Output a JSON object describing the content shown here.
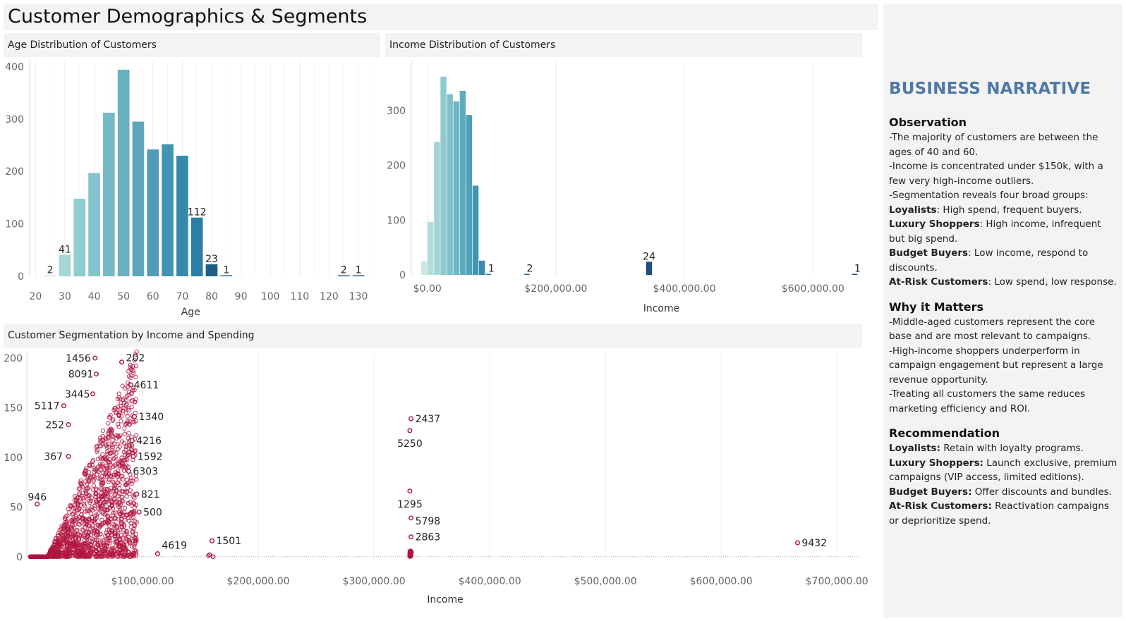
{
  "dashboard": {
    "title": "Customer Demographics & Segments"
  },
  "panels": {
    "age": {
      "title": "Age Distribution of Customers"
    },
    "income": {
      "title": "Income Distribution of  Customers"
    },
    "segment": {
      "title": "Customer Segmentation by Income and Spending"
    }
  },
  "narrative": {
    "title": "BUSINESS NARRATIVE",
    "sections": [
      {
        "heading": "Observation",
        "lines": [
          {
            "text": "-The majority of customers are between the ages of 40 and 60."
          },
          {
            "text": "-Income is concentrated under $150k, with a few very high-income outliers."
          },
          {
            "text": "-Segmentation reveals four broad groups:"
          },
          {
            "bold": "Loyalists",
            "text": ": High spend, frequent buyers."
          },
          {
            "bold": "Luxury Shoppers",
            "text": ": High income, infrequent but big spend."
          },
          {
            "bold": "Budget Buyers",
            "text": ": Low income, respond to discounts."
          },
          {
            "bold": "At-Risk Customers",
            "text": ": Low spend, low response."
          }
        ]
      },
      {
        "heading": "Why it Matters",
        "lines": [
          {
            "text": "-Middle-aged customers represent the core base and are most relevant to campaigns."
          },
          {
            "text": "-High-income shoppers underperform in campaign engagement but represent a large revenue opportunity."
          },
          {
            "text": "-Treating all customers the same reduces marketing efficiency and ROI."
          }
        ]
      },
      {
        "heading": "Recommendation",
        "lines": [
          {
            "bold": "Loyalists:",
            "text": " Retain with loyalty programs."
          },
          {
            "bold": "Luxury Shoppers:",
            "text": " Launch exclusive, premium campaigns (VIP access, limited editions)."
          },
          {
            "bold": "Budget Buyers:",
            "text": " Offer discounts and bundles."
          },
          {
            "bold": "At-Risk Customers:",
            "text": " Reactivation campaigns or deprioritize spend."
          }
        ]
      }
    ]
  },
  "chart_data": [
    {
      "id": "age",
      "type": "bar",
      "xlabel": "Age",
      "xlim": [
        18,
        136
      ],
      "ylim": [
        0,
        410
      ],
      "xticks": [
        20,
        30,
        40,
        50,
        60,
        70,
        80,
        90,
        100,
        110,
        120,
        130
      ],
      "yticks": [
        0,
        100,
        200,
        300,
        400
      ],
      "bins": [
        {
          "x": 25,
          "value": 2,
          "label": "2",
          "color": "#c8e3e3"
        },
        {
          "x": 30,
          "value": 41,
          "label": "41",
          "color": "#a5d5d6"
        },
        {
          "x": 35,
          "value": 148
        },
        {
          "x": 40,
          "value": 197
        },
        {
          "x": 45,
          "value": 312
        },
        {
          "x": 50,
          "value": 394
        },
        {
          "x": 55,
          "value": 295
        },
        {
          "x": 60,
          "value": 242
        },
        {
          "x": 65,
          "value": 252
        },
        {
          "x": 70,
          "value": 230
        },
        {
          "x": 75,
          "value": 112,
          "label": "112"
        },
        {
          "x": 80,
          "value": 23,
          "label": "23",
          "color": "#1f5f87"
        },
        {
          "x": 85,
          "value": 1,
          "label": "1",
          "color": "#1f5f87"
        },
        {
          "x": 125,
          "value": 2,
          "label": "2",
          "color": "#1f5f87"
        },
        {
          "x": 130,
          "value": 1,
          "label": "1",
          "color": "#1f5f87"
        }
      ]
    },
    {
      "id": "income",
      "type": "bar",
      "xlabel": "Income",
      "xlim": [
        -25000,
        670000
      ],
      "ylim": [
        0,
        390
      ],
      "xticks": [
        0,
        200000,
        400000,
        600000
      ],
      "xtick_labels": [
        "$0.00",
        "$200,000.00",
        "$400,000.00",
        "$600,000.00"
      ],
      "yticks": [
        0,
        100,
        200,
        300
      ],
      "bins": [
        {
          "x": -5000,
          "value": 25,
          "color": "#cce6e4"
        },
        {
          "x": 5000,
          "value": 97,
          "color": "#b4dcdb"
        },
        {
          "x": 15000,
          "value": 243,
          "color": "#a3d4d5"
        },
        {
          "x": 25000,
          "value": 362,
          "color": "#8fcad0"
        },
        {
          "x": 35000,
          "value": 330,
          "color": "#7ec0cb"
        },
        {
          "x": 45000,
          "value": 317,
          "color": "#6cb6c5"
        },
        {
          "x": 55000,
          "value": 336,
          "color": "#5dabbf"
        },
        {
          "x": 65000,
          "value": 292,
          "color": "#4f9fb8"
        },
        {
          "x": 75000,
          "value": 163,
          "color": "#4295b2"
        },
        {
          "x": 85000,
          "value": 26,
          "color": "#3a8aac"
        },
        {
          "x": 95000,
          "value": 1,
          "label": "1",
          "color": "#2f7ea6"
        },
        {
          "x": 155000,
          "value": 2,
          "label": "2",
          "color": "#2a6f98"
        },
        {
          "x": 345000,
          "value": 24,
          "label": "24",
          "color": "#1d4e80"
        },
        {
          "x": 665000,
          "value": 1,
          "label": "1",
          "color": "#1d4e80"
        }
      ]
    },
    {
      "id": "segment",
      "type": "scatter",
      "xlabel": "Income",
      "xlim": [
        0,
        720000
      ],
      "ylim": [
        -3,
        205
      ],
      "xticks": [
        100000,
        200000,
        300000,
        400000,
        500000,
        600000,
        700000
      ],
      "xtick_labels": [
        "$100,000.00",
        "$200,000.00",
        "$300,000.00",
        "$400,000.00",
        "$500,000.00",
        "$600,000.00",
        "$700,000.00"
      ],
      "yticks": [
        0,
        50,
        100,
        150,
        200
      ],
      "labeled_points": [
        {
          "x": 59000,
          "y": 200,
          "label": "1456"
        },
        {
          "x": 82000,
          "y": 196,
          "label": "202"
        },
        {
          "x": 60000,
          "y": 184,
          "label": "8091"
        },
        {
          "x": 90000,
          "y": 173,
          "label": "4611"
        },
        {
          "x": 57000,
          "y": 164,
          "label": "3445"
        },
        {
          "x": 32000,
          "y": 152,
          "label": "5117"
        },
        {
          "x": 93000,
          "y": 141,
          "label": "1340"
        },
        {
          "x": 36000,
          "y": 133,
          "label": "252"
        },
        {
          "x": 91000,
          "y": 117,
          "label": "4216"
        },
        {
          "x": 36000,
          "y": 101,
          "label": "367"
        },
        {
          "x": 92000,
          "y": 101,
          "label": "1592"
        },
        {
          "x": 88000,
          "y": 86,
          "label": "6303"
        },
        {
          "x": 95000,
          "y": 63,
          "label": "821"
        },
        {
          "x": 9000,
          "y": 53,
          "label": "946"
        },
        {
          "x": 97000,
          "y": 45,
          "label": "500"
        },
        {
          "x": 113000,
          "y": 3,
          "label": "4619"
        },
        {
          "x": 160000,
          "y": 16,
          "label": "1501"
        },
        {
          "x": 332000,
          "y": 139,
          "label": "2437"
        },
        {
          "x": 331000,
          "y": 127,
          "label": "5250"
        },
        {
          "x": 331000,
          "y": 66,
          "label": "1295"
        },
        {
          "x": 332000,
          "y": 39,
          "label": "5798"
        },
        {
          "x": 332000,
          "y": 20,
          "label": "2863"
        },
        {
          "x": 666000,
          "y": 14,
          "label": "9432"
        }
      ]
    }
  ]
}
